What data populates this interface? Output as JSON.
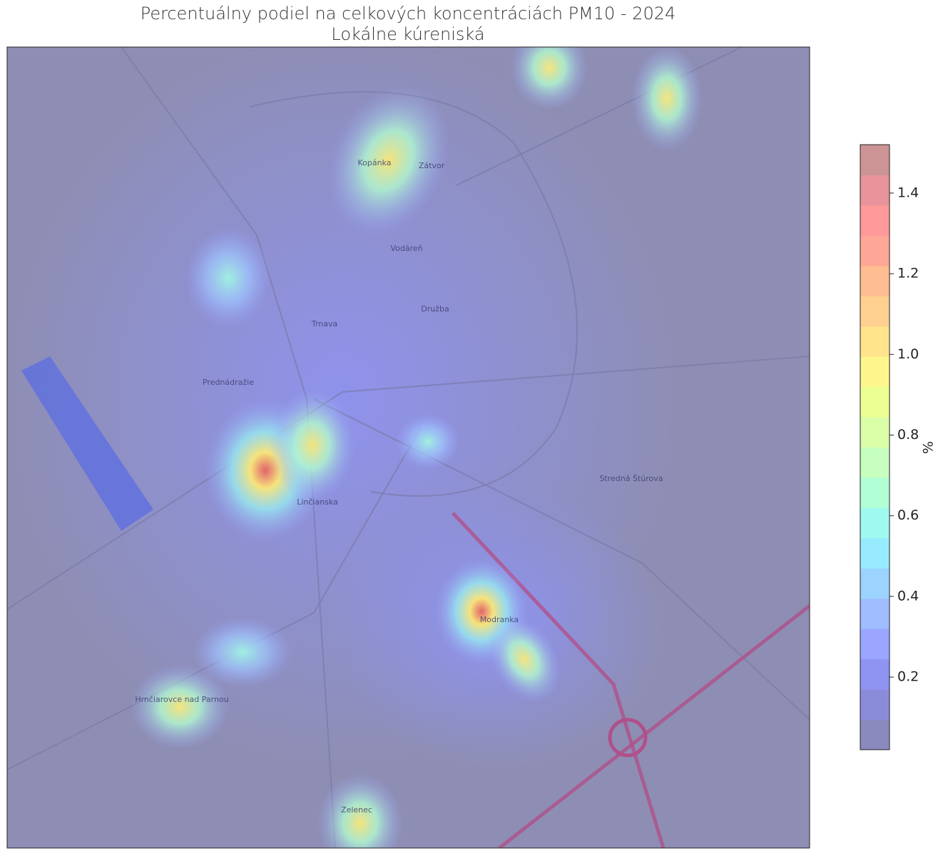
{
  "chart_data": {
    "type": "heatmap-map",
    "title": "Percentuálny podiel na celkových koncentráciách PM10 - 2024",
    "subtitle": "Lokálne kúreniská",
    "colorbar_label": "%",
    "clim": [
      0.02,
      1.52
    ],
    "colorbar_colors": [
      "#8a8abf",
      "#8b8cd9",
      "#8f93f2",
      "#9aa6ff",
      "#9fbdff",
      "#9cd3ff",
      "#98ebff",
      "#9ff9f0",
      "#b0ffd5",
      "#c6ffbe",
      "#dbffa8",
      "#ecff93",
      "#fcf68c",
      "#ffe48c",
      "#ffd08f",
      "#ffbd92",
      "#ffa796",
      "#ff999a",
      "#e8949a",
      "#cc9494"
    ],
    "colorbar_ticks": [
      0.2,
      0.4,
      0.6,
      0.8,
      {
        "value": 1.0,
        "label": "1.0"
      },
      1.2,
      1.4
    ],
    "map_labels": [
      "Trnava",
      "Kopánka",
      "Zátvor",
      "Vodáreň",
      "Družba",
      "Prednádražie",
      "Linčianska",
      "Modranka",
      "Zelenec",
      "Hrnčiarovce nad Parnou",
      "Stredná Štúrova"
    ]
  }
}
